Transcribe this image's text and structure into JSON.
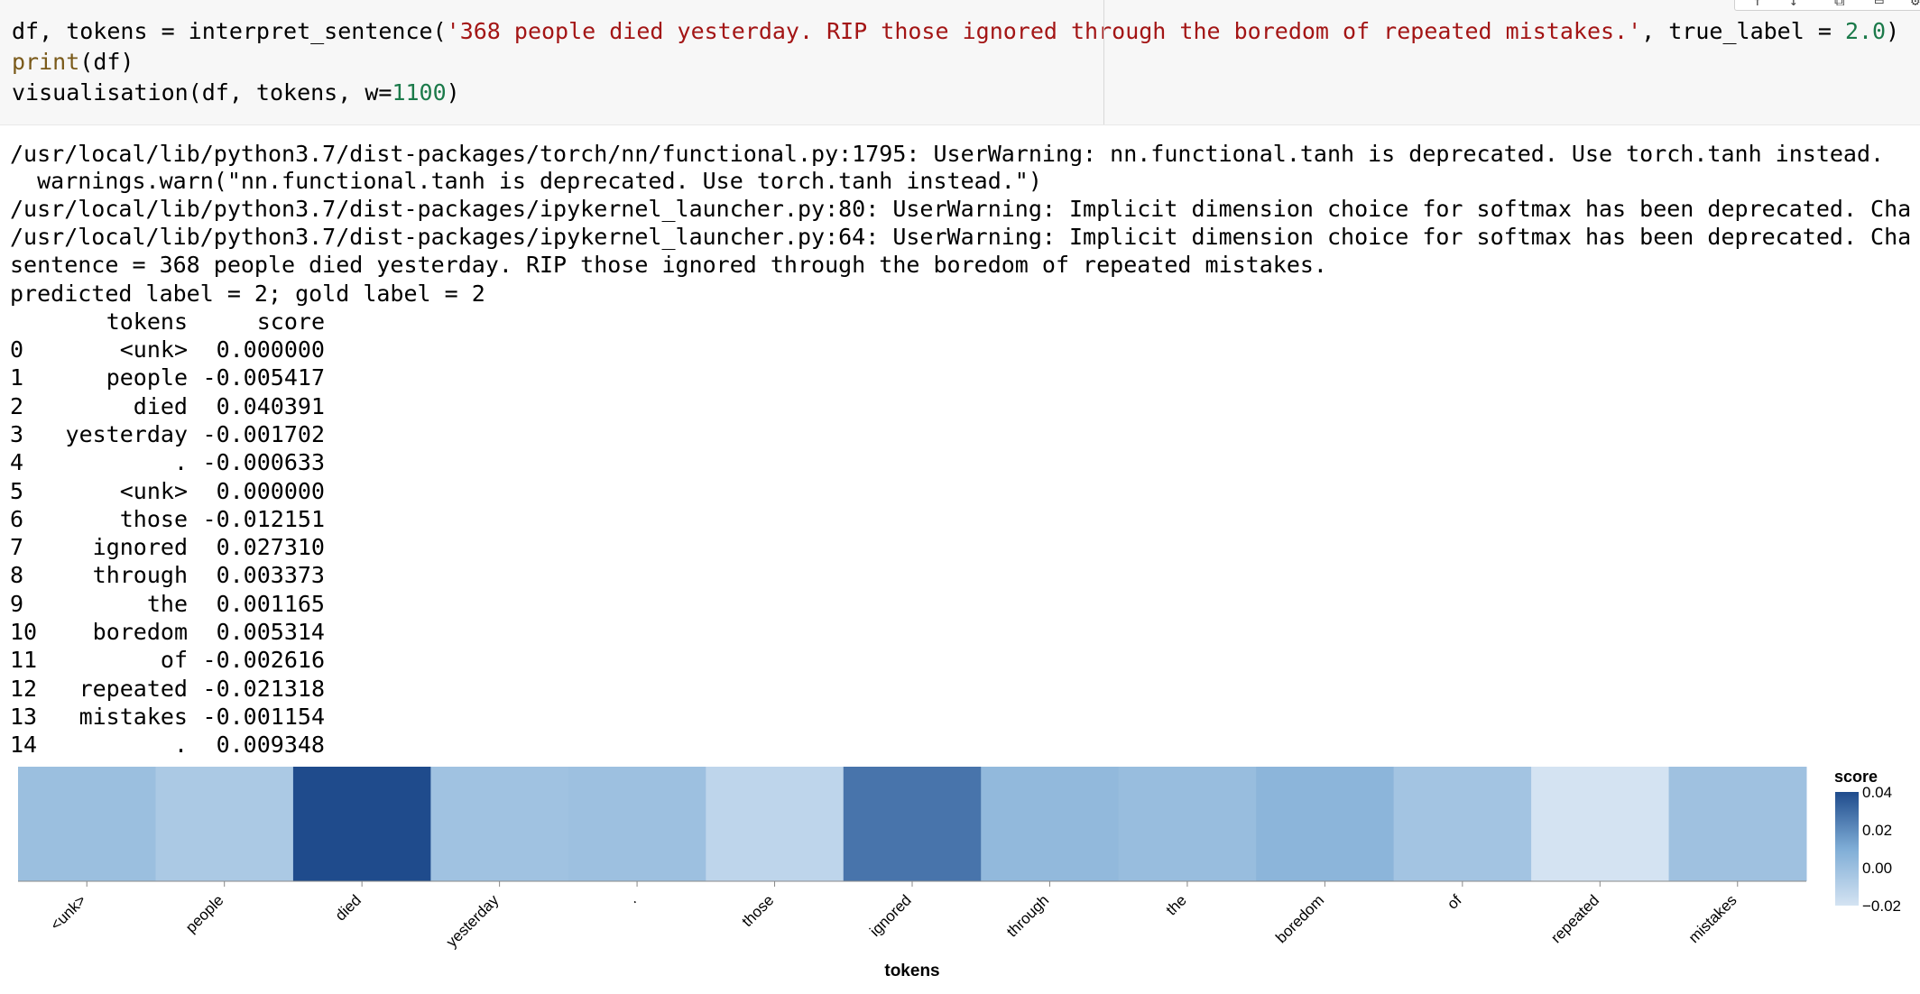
{
  "code_cell": {
    "line1_prefix": "df, tokens = interpret_sentence(",
    "line1_string": "'368 people died yesterday. RIP those ignored through the boredom of repeated mistakes.'",
    "line1_mid": ", true_label = ",
    "line1_num": "2.0",
    "line1_end": ")",
    "line2_fn": "print",
    "line2_rest": "(df)",
    "line3_prefix": "visualisation(df, tokens, w=",
    "line3_num": "1100",
    "line3_end": ")"
  },
  "output": {
    "warn1": "/usr/local/lib/python3.7/dist-packages/torch/nn/functional.py:1795: UserWarning: nn.functional.tanh is deprecated. Use torch.tanh instead.",
    "warn2": "  warnings.warn(\"nn.functional.tanh is deprecated. Use torch.tanh instead.\")",
    "warn3": "/usr/local/lib/python3.7/dist-packages/ipykernel_launcher.py:80: UserWarning: Implicit dimension choice for softmax has been deprecated. Cha",
    "warn4": "/usr/local/lib/python3.7/dist-packages/ipykernel_launcher.py:64: UserWarning: Implicit dimension choice for softmax has been deprecated. Cha",
    "sentence": "sentence = 368 people died yesterday. RIP those ignored through the boredom of repeated mistakes.",
    "labels": "predicted label = 2; gold label = 2",
    "df_header_tokens": "tokens",
    "df_header_score": "score",
    "df_rows": [
      {
        "idx": "0",
        "token": "<unk>",
        "score": "0.000000"
      },
      {
        "idx": "1",
        "token": "people",
        "score": "-0.005417"
      },
      {
        "idx": "2",
        "token": "died",
        "score": "0.040391"
      },
      {
        "idx": "3",
        "token": "yesterday",
        "score": "-0.001702"
      },
      {
        "idx": "4",
        "token": ".",
        "score": "-0.000633"
      },
      {
        "idx": "5",
        "token": "<unk>",
        "score": "0.000000"
      },
      {
        "idx": "6",
        "token": "those",
        "score": "-0.012151"
      },
      {
        "idx": "7",
        "token": "ignored",
        "score": "0.027310"
      },
      {
        "idx": "8",
        "token": "through",
        "score": "0.003373"
      },
      {
        "idx": "9",
        "token": "the",
        "score": "0.001165"
      },
      {
        "idx": "10",
        "token": "boredom",
        "score": "0.005314"
      },
      {
        "idx": "11",
        "token": "of",
        "score": "-0.002616"
      },
      {
        "idx": "12",
        "token": "repeated",
        "score": "-0.021318"
      },
      {
        "idx": "13",
        "token": "mistakes",
        "score": "-0.001154"
      },
      {
        "idx": "14",
        "token": ".",
        "score": "0.009348"
      }
    ]
  },
  "chart_data": {
    "type": "heatmap",
    "xlabel": "tokens",
    "legend_title": "score",
    "legend_ticks": [
      "0.04",
      "0.02",
      "0.00",
      "−0.02"
    ],
    "color_domain": [
      -0.02,
      0.04
    ],
    "colors": {
      "low": "#d4e3f2",
      "high": "#1f4b8c"
    },
    "categories": [
      "<unk>",
      "people",
      "died",
      "yesterday",
      ".",
      "those",
      "ignored",
      "through",
      "the",
      "boredom",
      "of",
      "repeated",
      "mistakes"
    ],
    "values": [
      0.0,
      -0.005417,
      0.040391,
      -0.001702,
      -0.000633,
      -0.012151,
      0.02731,
      0.003373,
      0.001165,
      0.005314,
      -0.002616,
      -0.021318,
      -0.001154
    ]
  }
}
